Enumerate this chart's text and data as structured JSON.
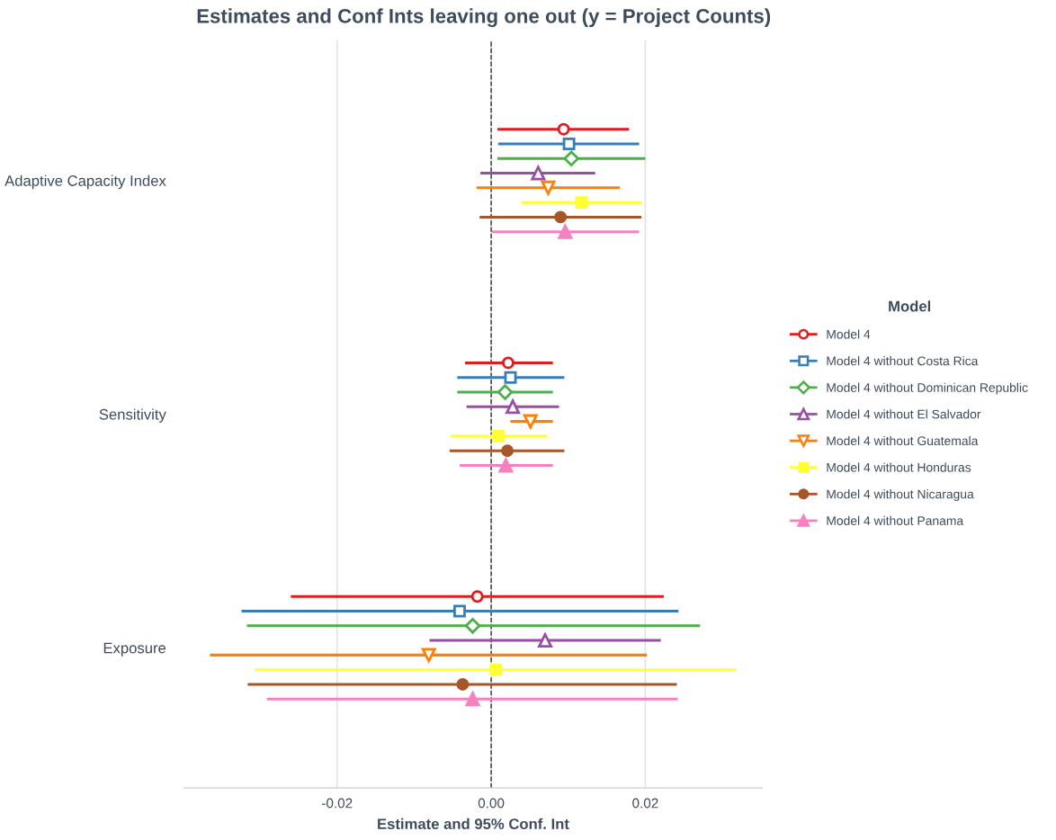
{
  "chart_data": {
    "type": "scatter",
    "orientation": "horizontal",
    "title": "Estimates and Conf Ints leaving one out (y = Project Counts)",
    "xlabel": "Estimate and 95% Conf. Int",
    "legend_title": "Model",
    "legend": "right",
    "categories": [
      "Adaptive Capacity Index",
      "Sensitivity",
      "Exposure"
    ],
    "xlim": [
      -0.0399,
      0.0352
    ],
    "xticks": [
      {
        "value": -0.02,
        "label": "-0.02"
      },
      {
        "value": 0,
        "label": "0.00"
      },
      {
        "value": 0.02,
        "label": "0.02"
      }
    ],
    "grid": "x",
    "ref_lines": [
      {
        "axis": "x",
        "value": 0,
        "color": "#333333",
        "line_style": "dashed"
      }
    ],
    "series": [
      {
        "name": "Model 4",
        "color": "#e41a1c",
        "marker": "circle-open",
        "values": [
          0.0094,
          0.0022,
          -0.0018
        ],
        "errors": [
          [
            0.0008,
            0.0179
          ],
          [
            -0.0034,
            0.008
          ],
          [
            -0.026,
            0.0224
          ]
        ]
      },
      {
        "name": "Model 4 without Costa Rica",
        "color": "#377eb8",
        "marker": "square-open",
        "values": [
          0.0101,
          0.0025,
          -0.0041
        ],
        "errors": [
          [
            0.0009,
            0.0192
          ],
          [
            -0.0044,
            0.0095
          ],
          [
            -0.0324,
            0.0243
          ]
        ]
      },
      {
        "name": "Model 4 without Dominican Republic",
        "color": "#4daf4a",
        "marker": "diamond-open",
        "values": [
          0.0104,
          0.0018,
          -0.0024
        ],
        "errors": [
          [
            0.0008,
            0.02
          ],
          [
            -0.0044,
            0.008
          ],
          [
            -0.0317,
            0.0271
          ]
        ]
      },
      {
        "name": "Model 4 without El Salvador",
        "color": "#984ea3",
        "marker": "triangle-open",
        "values": [
          0.0061,
          0.0028,
          0.007
        ],
        "errors": [
          [
            -0.0014,
            0.0135
          ],
          [
            -0.0032,
            0.0088
          ],
          [
            -0.008,
            0.022
          ]
        ]
      },
      {
        "name": "Model 4 without Guatemala",
        "color": "#ff7f00",
        "marker": "triangle-down-open",
        "values": [
          0.0074,
          0.0051,
          -0.0081
        ],
        "errors": [
          [
            -0.0019,
            0.0167
          ],
          [
            0.0025,
            0.008
          ],
          [
            -0.0365,
            0.0202
          ]
        ]
      },
      {
        "name": "Model 4 without Honduras",
        "color": "#ffff33",
        "marker": "square",
        "values": [
          0.0117,
          0.0009,
          0.0006
        ],
        "errors": [
          [
            0.0039,
            0.0195
          ],
          [
            -0.0053,
            0.0073
          ],
          [
            -0.0307,
            0.0318
          ]
        ]
      },
      {
        "name": "Model 4 without Nicaragua",
        "color": "#a65628",
        "marker": "circle",
        "values": [
          0.009,
          0.0021,
          -0.0037
        ],
        "errors": [
          [
            -0.0015,
            0.0195
          ],
          [
            -0.0054,
            0.0095
          ],
          [
            -0.0316,
            0.0241
          ]
        ]
      },
      {
        "name": "Model 4 without Panama",
        "color": "#f781bf",
        "marker": "triangle",
        "values": [
          0.0096,
          0.0019,
          -0.0024
        ],
        "errors": [
          [
            0.0001,
            0.0192
          ],
          [
            -0.0041,
            0.008
          ],
          [
            -0.0291,
            0.0242
          ]
        ]
      }
    ]
  }
}
